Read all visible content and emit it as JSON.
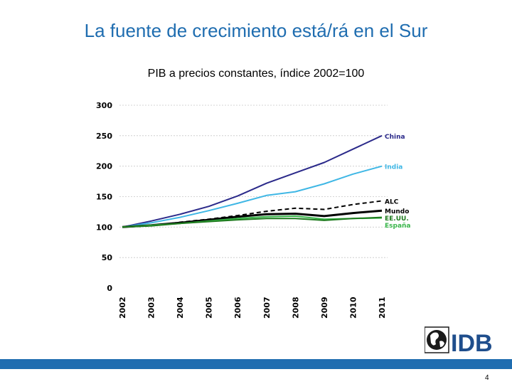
{
  "slide": {
    "title": "La fuente de crecimiento está/rá en el Sur",
    "page_number": "4"
  },
  "logo": {
    "text": "IDB"
  },
  "colors": {
    "title": "#1f6db0",
    "footer": "#1f6db0",
    "china": "#2b2a8a",
    "india": "#3fb7e5",
    "alc": "#000000",
    "mundo": "#000000",
    "espana": "#2e9f2e",
    "eeuu": "#2e9f2e"
  },
  "chart_data": {
    "type": "line",
    "title": "PIB a precios constantes, índice 2002=100",
    "xlabel": "",
    "ylabel": "",
    "x": [
      "2002",
      "2003",
      "2004",
      "2005",
      "2006",
      "2007",
      "2008",
      "2009",
      "2010",
      "2011"
    ],
    "ylim": [
      0,
      300
    ],
    "yticks": [
      "0",
      "50",
      "100",
      "150",
      "200",
      "250",
      "300"
    ],
    "grid": true,
    "legend": "right",
    "series": [
      {
        "name": "China",
        "color": "#2b2a8a",
        "dash": false,
        "width": 2,
        "values": [
          100,
          110,
          121,
          134,
          151,
          172,
          189,
          206,
          228,
          250
        ]
      },
      {
        "name": "India",
        "color": "#3fb7e5",
        "dash": false,
        "width": 2,
        "values": [
          100,
          107,
          116,
          127,
          139,
          152,
          158,
          171,
          187,
          200
        ]
      },
      {
        "name": "ALC",
        "color": "#000000",
        "dash": true,
        "width": 2,
        "values": [
          100,
          102,
          108,
          113,
          119,
          126,
          131,
          129,
          137,
          143
        ]
      },
      {
        "name": "Mundo",
        "color": "#000000",
        "dash": false,
        "width": 3,
        "values": [
          100,
          103,
          107,
          112,
          117,
          121,
          122,
          118,
          123,
          127
        ]
      },
      {
        "name": "España",
        "color": "#39b54a",
        "dash": false,
        "width": 2,
        "values": [
          100,
          103,
          106,
          110,
          114,
          117,
          118,
          113,
          114,
          115
        ]
      },
      {
        "name": "EE.UU.",
        "color": "#1e7b1e",
        "dash": false,
        "width": 2,
        "values": [
          100,
          102,
          106,
          109,
          112,
          114,
          114,
          111,
          114,
          116
        ]
      }
    ]
  }
}
